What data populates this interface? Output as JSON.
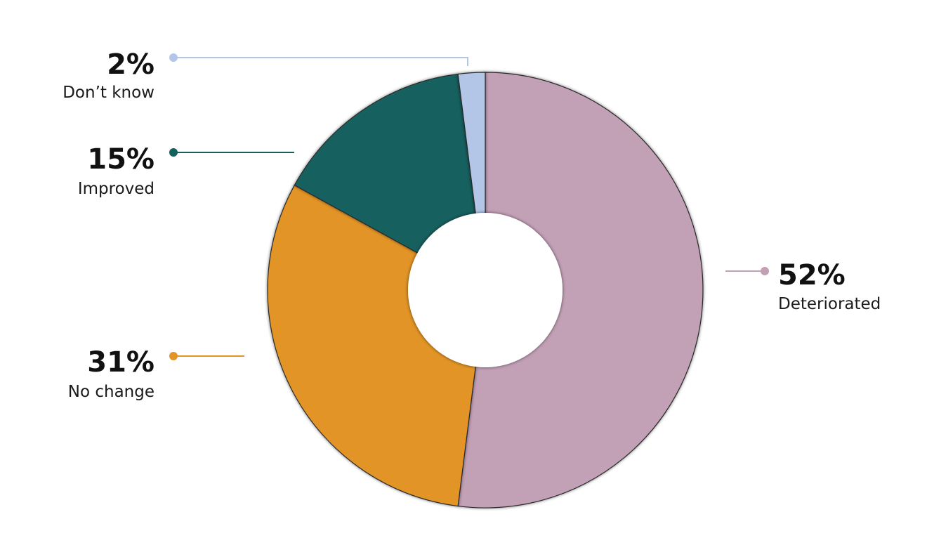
{
  "chart_data": {
    "type": "pie",
    "series": [
      {
        "label": "Deteriorated",
        "value": 52,
        "display": "52%",
        "color": "#C2A0B6"
      },
      {
        "label": "No change",
        "value": 31,
        "display": "31%",
        "color": "#E29428"
      },
      {
        "label": "Improved",
        "value": 15,
        "display": "15%",
        "color": "#14605E"
      },
      {
        "label": "Don’t know",
        "value": 2,
        "display": "2%",
        "color": "#B4C6E7"
      }
    ],
    "donut": true,
    "legend": "callouts"
  }
}
